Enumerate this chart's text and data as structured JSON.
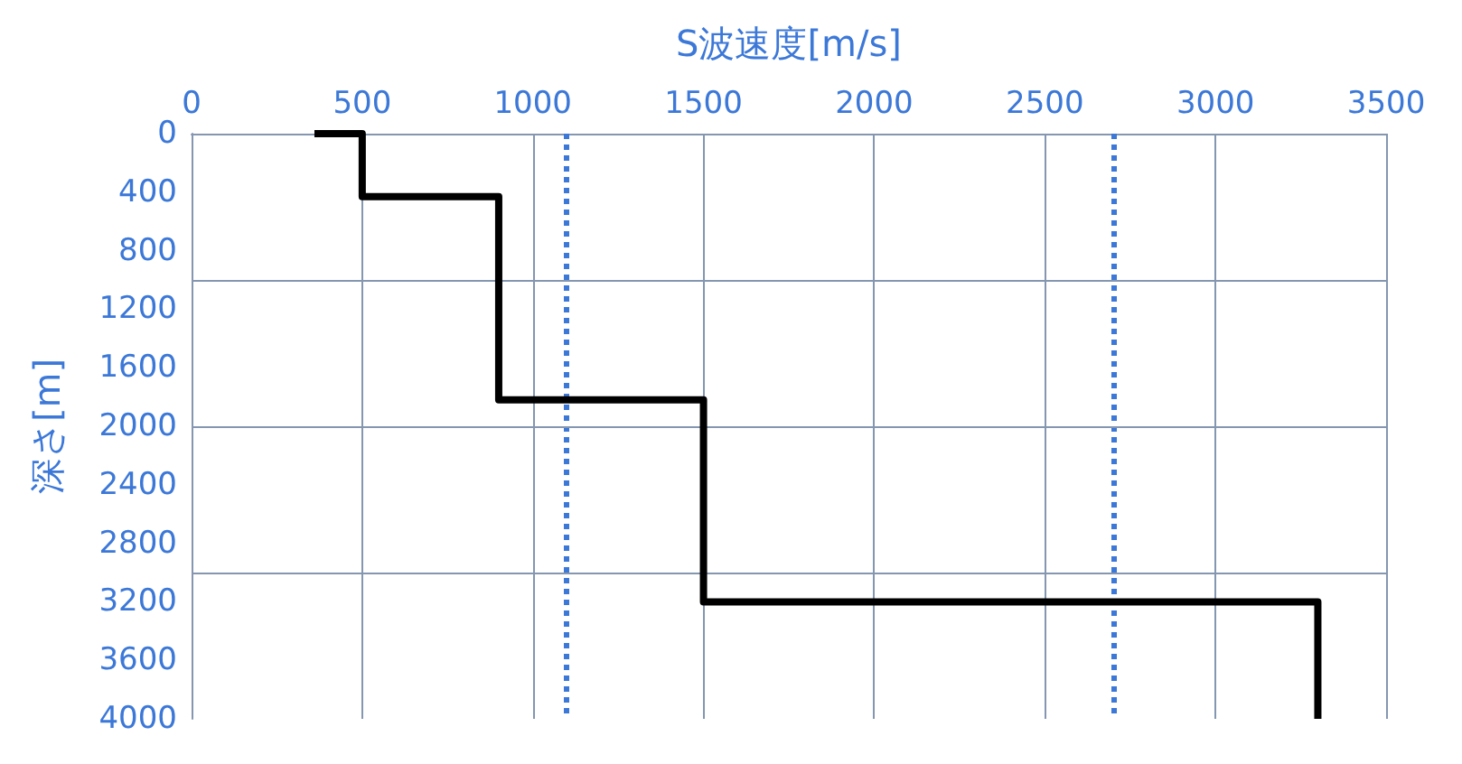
{
  "chart_data": {
    "type": "line",
    "xlabel": "S波速度[m/s]",
    "ylabel": "深さ[m]",
    "series": [
      {
        "color": "#000000",
        "x": [
          360,
          500,
          500,
          900,
          900,
          1500,
          1500,
          3300,
          3300
        ],
        "values": [
          0,
          0,
          430,
          430,
          1820,
          1820,
          3200,
          3200,
          4000
        ]
      }
    ],
    "xlim": [
      0,
      3500
    ],
    "xticks": [
      0,
      500,
      1000,
      1500,
      2000,
      2500,
      3000,
      3500
    ],
    "ylim": [
      4000,
      0
    ],
    "yticks": [
      0,
      400,
      800,
      1200,
      1600,
      2000,
      2400,
      2800,
      3200,
      3600,
      4000
    ],
    "grid": "x",
    "line_style": "solid",
    "ref_lines": [
      {
        "axis": "x",
        "value": 1100,
        "color": "#3c78d8",
        "line_style": "dotted"
      },
      {
        "axis": "x",
        "value": 2700,
        "color": "#3c78d8",
        "line_style": "dotted"
      },
      {
        "axis": "y",
        "value": 1000,
        "color": "#8496b0",
        "line_style": "solid"
      },
      {
        "axis": "y",
        "value": 2000,
        "color": "#8496b0",
        "line_style": "solid"
      },
      {
        "axis": "y",
        "value": 3000,
        "color": "#8496b0",
        "line_style": "solid"
      }
    ]
  }
}
